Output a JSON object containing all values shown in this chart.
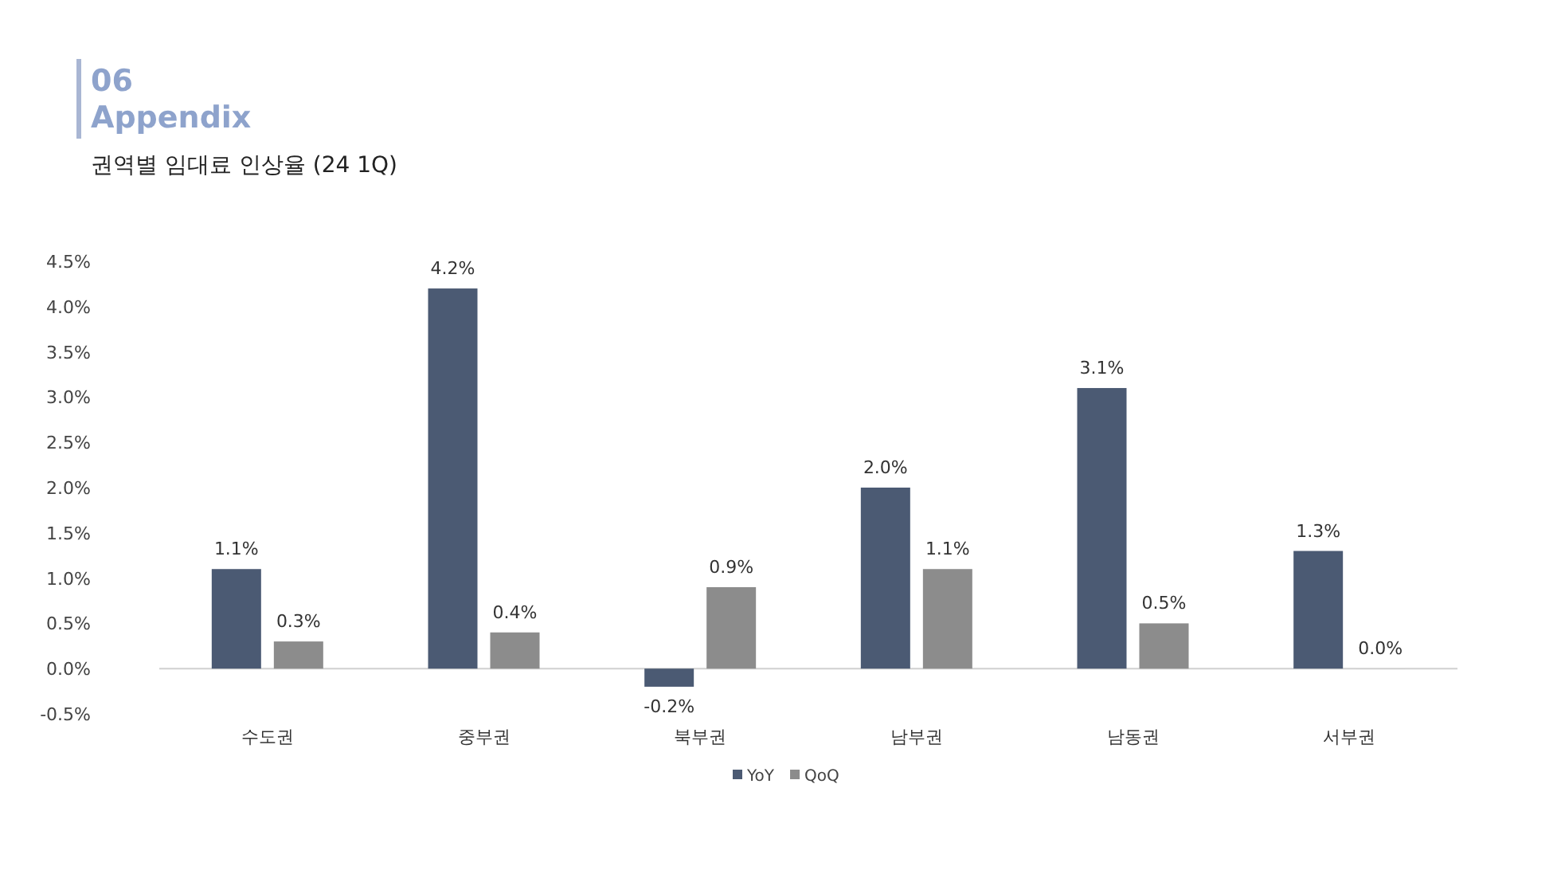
{
  "chart_data": {
    "type": "bar",
    "title": "권역별 임대료 인상율 (24 1Q)",
    "annotations": [
      "06",
      "Appendix"
    ],
    "categories": [
      "수도권",
      "중부권",
      "북부권",
      "남부권",
      "남동권",
      "서부권"
    ],
    "series": [
      {
        "name": "YoY",
        "color": "#4b5a73",
        "values": [
          1.1,
          4.2,
          -0.2,
          2.0,
          3.1,
          1.3
        ],
        "value_labels": [
          "1.1%",
          "4.2%",
          "-0.2%",
          "2.0%",
          "3.1%",
          "1.3%"
        ]
      },
      {
        "name": "QoQ",
        "color": "#8c8c8c",
        "values": [
          0.3,
          0.4,
          0.9,
          1.1,
          0.5,
          0.0
        ],
        "value_labels": [
          "0.3%",
          "0.4%",
          "0.9%",
          "1.1%",
          "0.5%",
          "0.0%"
        ]
      }
    ],
    "ylim": [
      -0.5,
      4.5
    ],
    "yticks": [
      {
        "value": -0.5,
        "label": "-0.5%"
      },
      {
        "value": 0,
        "label": "0.0%"
      },
      {
        "value": 0.5,
        "label": "0.5%"
      },
      {
        "value": 1,
        "label": "1.0%"
      },
      {
        "value": 1.5,
        "label": "1.5%"
      },
      {
        "value": 2,
        "label": "2.0%"
      },
      {
        "value": 2.5,
        "label": "2.5%"
      },
      {
        "value": 3,
        "label": "3.0%"
      },
      {
        "value": 3.5,
        "label": "3.5%"
      },
      {
        "value": 4,
        "label": "4.0%"
      },
      {
        "value": 4.5,
        "label": "4.5%"
      }
    ],
    "legend": "bottom"
  }
}
